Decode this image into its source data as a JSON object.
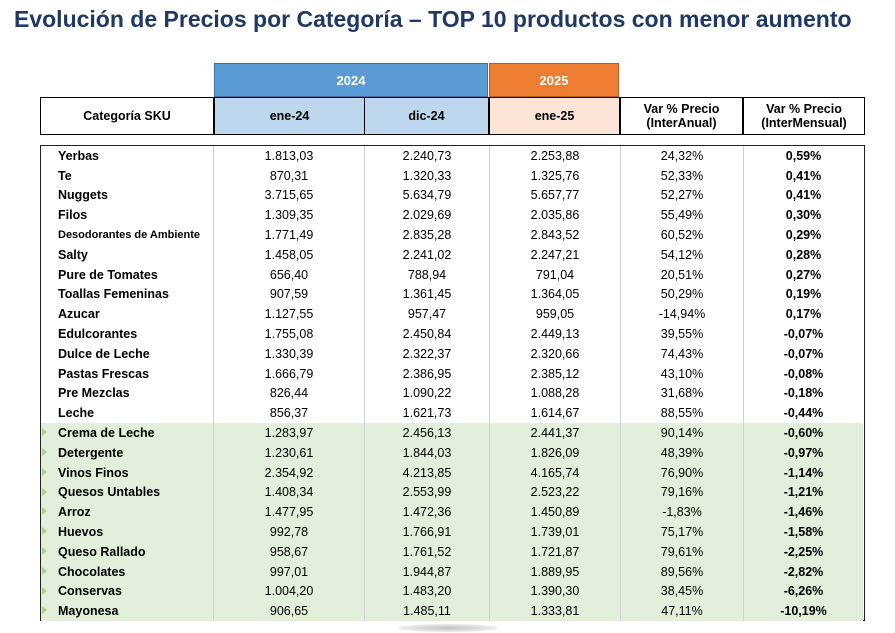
{
  "title": "Evolución de Precios por Categoría – TOP 10 productos con menor aumento",
  "years": {
    "y2024": "2024",
    "y2025": "2025"
  },
  "headers": {
    "category": "Categoría SKU",
    "col1": "ene-24",
    "col2": "dic-24",
    "col3": "ene-25",
    "col4_line1": "Var % Precio",
    "col4_line2": "(InterAnual)",
    "col5_line1": "Var % Precio",
    "col5_line2": "(InterMensual)"
  },
  "colors": {
    "title": "#1f3864",
    "year_2024": "#5b9bd5",
    "year_2025": "#ed7d31",
    "header_2024": "#bdd7ee",
    "header_2025": "#fce4d6",
    "highlight_rows": "#e2efda"
  },
  "rows": [
    {
      "category": "Yerbas",
      "ene24": "1.813,03",
      "dic24": "2.240,73",
      "ene25": "2.253,88",
      "interanual": "24,32%",
      "intermensual": "0,59%",
      "highlight": false
    },
    {
      "category": "Te",
      "ene24": "870,31",
      "dic24": "1.320,33",
      "ene25": "1.325,76",
      "interanual": "52,33%",
      "intermensual": "0,41%",
      "highlight": false
    },
    {
      "category": "Nuggets",
      "ene24": "3.715,65",
      "dic24": "5.634,79",
      "ene25": "5.657,77",
      "interanual": "52,27%",
      "intermensual": "0,41%",
      "highlight": false
    },
    {
      "category": "Filos",
      "ene24": "1.309,35",
      "dic24": "2.029,69",
      "ene25": "2.035,86",
      "interanual": "55,49%",
      "intermensual": "0,30%",
      "highlight": false
    },
    {
      "category": "Desodorantes de Ambiente",
      "ene24": "1.771,49",
      "dic24": "2.835,28",
      "ene25": "2.843,52",
      "interanual": "60,52%",
      "intermensual": "0,29%",
      "highlight": false,
      "small": true
    },
    {
      "category": "Salty",
      "ene24": "1.458,05",
      "dic24": "2.241,02",
      "ene25": "2.247,21",
      "interanual": "54,12%",
      "intermensual": "0,28%",
      "highlight": false
    },
    {
      "category": "Pure de Tomates",
      "ene24": "656,40",
      "dic24": "788,94",
      "ene25": "791,04",
      "interanual": "20,51%",
      "intermensual": "0,27%",
      "highlight": false
    },
    {
      "category": "Toallas Femeninas",
      "ene24": "907,59",
      "dic24": "1.361,45",
      "ene25": "1.364,05",
      "interanual": "50,29%",
      "intermensual": "0,19%",
      "highlight": false
    },
    {
      "category": "Azucar",
      "ene24": "1.127,55",
      "dic24": "957,47",
      "ene25": "959,05",
      "interanual": "-14,94%",
      "intermensual": "0,17%",
      "highlight": false
    },
    {
      "category": "Edulcorantes",
      "ene24": "1.755,08",
      "dic24": "2.450,84",
      "ene25": "2.449,13",
      "interanual": "39,55%",
      "intermensual": "-0,07%",
      "highlight": false
    },
    {
      "category": "Dulce de Leche",
      "ene24": "1.330,39",
      "dic24": "2.322,37",
      "ene25": "2.320,66",
      "interanual": "74,43%",
      "intermensual": "-0,07%",
      "highlight": false
    },
    {
      "category": "Pastas Frescas",
      "ene24": "1.666,79",
      "dic24": "2.386,95",
      "ene25": "2.385,12",
      "interanual": "43,10%",
      "intermensual": "-0,08%",
      "highlight": false
    },
    {
      "category": "Pre Mezclas",
      "ene24": "826,44",
      "dic24": "1.090,22",
      "ene25": "1.088,28",
      "interanual": "31,68%",
      "intermensual": "-0,18%",
      "highlight": false
    },
    {
      "category": "Leche",
      "ene24": "856,37",
      "dic24": "1.621,73",
      "ene25": "1.614,67",
      "interanual": "88,55%",
      "intermensual": "-0,44%",
      "highlight": false
    },
    {
      "category": "Crema de Leche",
      "ene24": "1.283,97",
      "dic24": "2.456,13",
      "ene25": "2.441,37",
      "interanual": "90,14%",
      "intermensual": "-0,60%",
      "highlight": true
    },
    {
      "category": "Detergente",
      "ene24": "1.230,61",
      "dic24": "1.844,03",
      "ene25": "1.826,09",
      "interanual": "48,39%",
      "intermensual": "-0,97%",
      "highlight": true
    },
    {
      "category": "Vinos Finos",
      "ene24": "2.354,92",
      "dic24": "4.213,85",
      "ene25": "4.165,74",
      "interanual": "76,90%",
      "intermensual": "-1,14%",
      "highlight": true
    },
    {
      "category": "Quesos Untables",
      "ene24": "1.408,34",
      "dic24": "2.553,99",
      "ene25": "2.523,22",
      "interanual": "79,16%",
      "intermensual": "-1,21%",
      "highlight": true
    },
    {
      "category": "Arroz",
      "ene24": "1.477,95",
      "dic24": "1.472,36",
      "ene25": "1.450,89",
      "interanual": "-1,83%",
      "intermensual": "-1,46%",
      "highlight": true
    },
    {
      "category": "Huevos",
      "ene24": "992,78",
      "dic24": "1.766,91",
      "ene25": "1.739,01",
      "interanual": "75,17%",
      "intermensual": "-1,58%",
      "highlight": true
    },
    {
      "category": "Queso Rallado",
      "ene24": "958,67",
      "dic24": "1.761,52",
      "ene25": "1.721,87",
      "interanual": "79,61%",
      "intermensual": "-2,25%",
      "highlight": true
    },
    {
      "category": "Chocolates",
      "ene24": "997,01",
      "dic24": "1.944,87",
      "ene25": "1.889,95",
      "interanual": "89,56%",
      "intermensual": "-2,82%",
      "highlight": true
    },
    {
      "category": "Conservas",
      "ene24": "1.004,20",
      "dic24": "1.483,20",
      "ene25": "1.390,30",
      "interanual": "38,45%",
      "intermensual": "-6,26%",
      "highlight": true
    },
    {
      "category": "Mayonesa",
      "ene24": "906,65",
      "dic24": "1.485,11",
      "ene25": "1.333,81",
      "interanual": "47,11%",
      "intermensual": "-10,19%",
      "highlight": true
    }
  ]
}
